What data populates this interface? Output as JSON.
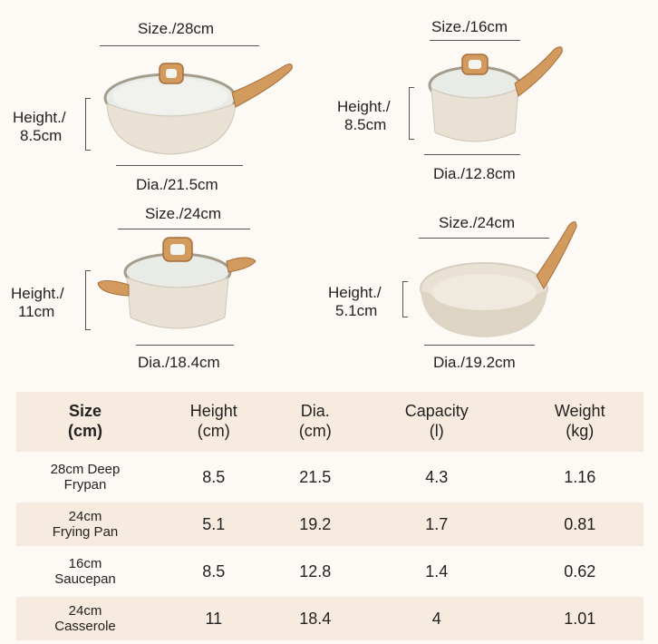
{
  "products": {
    "deep_frypan": {
      "size": "Size./28cm",
      "height": [
        "Height./",
        "8.5cm"
      ],
      "dia": "Dia./21.5cm"
    },
    "saucepan": {
      "size": "Size./16cm",
      "height": [
        "Height./",
        "8.5cm"
      ],
      "dia": "Dia./12.8cm"
    },
    "casserole": {
      "size": "Size./24cm",
      "height": [
        "Height./",
        "11cm"
      ],
      "dia": "Dia./18.4cm"
    },
    "frying_pan": {
      "size": "Size./24cm",
      "height": [
        "Height./",
        "5.1cm"
      ],
      "dia": "Dia./19.2cm"
    }
  },
  "colors": {
    "accent_row": "#f7ebdf",
    "body_cream": "#e8e1d4",
    "wood": "#d39a5e"
  },
  "table": {
    "headers": [
      [
        "Size",
        "(cm)"
      ],
      [
        "Height",
        "(cm)"
      ],
      [
        "Dia.",
        "(cm)"
      ],
      [
        "Capacity",
        "(l)"
      ],
      [
        "Weight",
        "(kg)"
      ]
    ],
    "rows": [
      {
        "name": [
          "28cm Deep",
          "Frypan"
        ],
        "height": "8.5",
        "dia": "21.5",
        "capacity": "4.3",
        "weight": "1.16"
      },
      {
        "name": [
          "24cm",
          "Frying Pan"
        ],
        "height": "5.1",
        "dia": "19.2",
        "capacity": "1.7",
        "weight": "0.81"
      },
      {
        "name": [
          "16cm",
          "Saucepan"
        ],
        "height": "8.5",
        "dia": "12.8",
        "capacity": "1.4",
        "weight": "0.62"
      },
      {
        "name": [
          "24cm",
          "Casserole"
        ],
        "height": "11",
        "dia": "18.4",
        "capacity": "4",
        "weight": "1.01"
      }
    ]
  }
}
